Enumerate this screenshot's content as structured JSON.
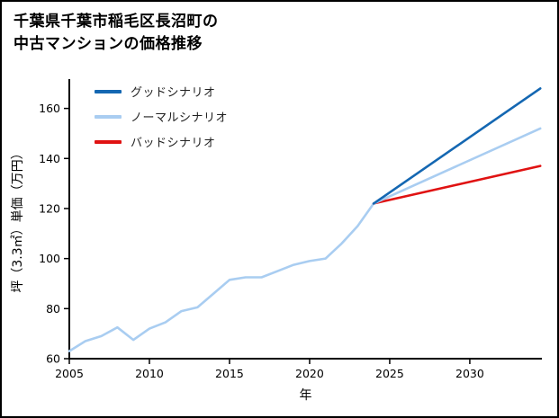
{
  "page": {
    "title_line1": "千葉県千葉市稲毛区長沼町の",
    "title_line2": "中古マンションの価格推移"
  },
  "chart_data": {
    "type": "line",
    "title": "千葉県千葉市稲毛区長沼町の中古マンションの価格推移",
    "xlabel": "年",
    "ylabel": "坪（3.3㎡）単価（万円）",
    "xlim": [
      2005,
      2034.5
    ],
    "ylim": [
      60,
      171
    ],
    "xticks": [
      2005,
      2010,
      2015,
      2020,
      2025,
      2030
    ],
    "yticks": [
      60,
      80,
      100,
      120,
      140,
      160
    ],
    "grid": false,
    "legend_position": "top-left",
    "axis_color": "#000000",
    "history": {
      "label": "",
      "color": "#a9cdf1",
      "x": [
        2005,
        2006,
        2007,
        2008,
        2009,
        2010,
        2011,
        2012,
        2013,
        2014,
        2015,
        2016,
        2017,
        2018,
        2019,
        2020,
        2021,
        2022,
        2023,
        2024
      ],
      "y": [
        63,
        67,
        69,
        72.5,
        67.5,
        72,
        74.5,
        79,
        80.5,
        86,
        91.5,
        92.5,
        92.5,
        95,
        97.5,
        99,
        100,
        106,
        113,
        122
      ]
    },
    "scenarios": [
      {
        "name": "グッドシナリオ",
        "color": "#1467b2",
        "x": [
          2024,
          2034.4
        ],
        "y": [
          122,
          168
        ]
      },
      {
        "name": "ノーマルシナリオ",
        "color": "#a9cdf1",
        "x": [
          2024,
          2034.4
        ],
        "y": [
          122,
          152
        ]
      },
      {
        "name": "バッドシナリオ",
        "color": "#e01212",
        "x": [
          2024,
          2034.4
        ],
        "y": [
          122,
          137
        ]
      }
    ]
  }
}
